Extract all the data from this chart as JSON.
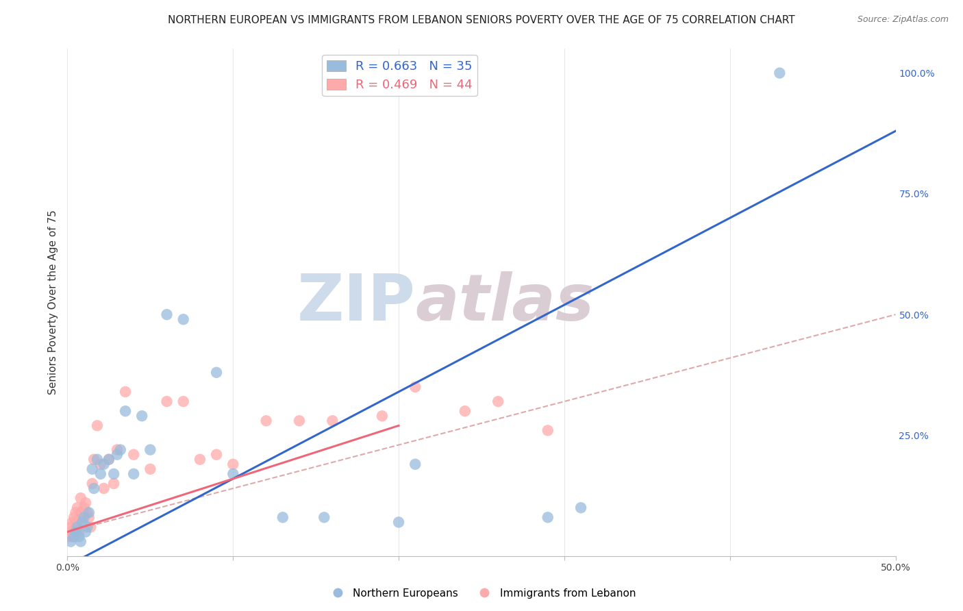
{
  "title": "NORTHERN EUROPEAN VS IMMIGRANTS FROM LEBANON SENIORS POVERTY OVER THE AGE OF 75 CORRELATION CHART",
  "source": "Source: ZipAtlas.com",
  "ylabel": "Seniors Poverty Over the Age of 75",
  "xlim": [
    0.0,
    0.5
  ],
  "ylim": [
    0.0,
    1.05
  ],
  "blue_R": 0.663,
  "blue_N": 35,
  "pink_R": 0.469,
  "pink_N": 44,
  "blue_scatter_x": [
    0.002,
    0.004,
    0.005,
    0.006,
    0.007,
    0.008,
    0.009,
    0.01,
    0.011,
    0.012,
    0.013,
    0.015,
    0.016,
    0.018,
    0.02,
    0.022,
    0.025,
    0.028,
    0.03,
    0.032,
    0.035,
    0.04,
    0.045,
    0.05,
    0.06,
    0.07,
    0.09,
    0.1,
    0.13,
    0.155,
    0.2,
    0.21,
    0.29,
    0.31,
    0.43
  ],
  "blue_scatter_y": [
    0.03,
    0.04,
    0.05,
    0.06,
    0.04,
    0.03,
    0.07,
    0.08,
    0.05,
    0.06,
    0.09,
    0.18,
    0.14,
    0.2,
    0.17,
    0.19,
    0.2,
    0.17,
    0.21,
    0.22,
    0.3,
    0.17,
    0.29,
    0.22,
    0.5,
    0.49,
    0.38,
    0.17,
    0.08,
    0.08,
    0.07,
    0.19,
    0.08,
    0.1,
    1.0
  ],
  "pink_scatter_x": [
    0.001,
    0.002,
    0.002,
    0.003,
    0.003,
    0.004,
    0.004,
    0.005,
    0.005,
    0.006,
    0.006,
    0.007,
    0.008,
    0.008,
    0.009,
    0.01,
    0.011,
    0.012,
    0.013,
    0.014,
    0.015,
    0.016,
    0.018,
    0.02,
    0.022,
    0.025,
    0.028,
    0.03,
    0.035,
    0.04,
    0.05,
    0.06,
    0.07,
    0.08,
    0.09,
    0.1,
    0.12,
    0.14,
    0.16,
    0.19,
    0.21,
    0.24,
    0.26,
    0.29
  ],
  "pink_scatter_y": [
    0.04,
    0.05,
    0.06,
    0.04,
    0.07,
    0.05,
    0.08,
    0.06,
    0.09,
    0.07,
    0.1,
    0.05,
    0.09,
    0.12,
    0.08,
    0.1,
    0.11,
    0.09,
    0.08,
    0.06,
    0.15,
    0.2,
    0.27,
    0.19,
    0.14,
    0.2,
    0.15,
    0.22,
    0.34,
    0.21,
    0.18,
    0.32,
    0.32,
    0.2,
    0.21,
    0.19,
    0.28,
    0.28,
    0.28,
    0.29,
    0.35,
    0.3,
    0.32,
    0.26
  ],
  "blue_line_x": [
    0.0,
    0.5
  ],
  "blue_line_y": [
    -0.02,
    0.88
  ],
  "pink_solid_line_x": [
    0.0,
    0.2
  ],
  "pink_solid_line_y": [
    0.05,
    0.27
  ],
  "pink_dashed_line_x": [
    0.0,
    0.5
  ],
  "pink_dashed_line_y": [
    0.05,
    0.5
  ],
  "blue_color": "#99BBDD",
  "pink_color": "#FFAAAA",
  "blue_line_color": "#3366CC",
  "pink_solid_color": "#EE6677",
  "pink_dashed_color": "#DDAAAA",
  "watermark_zip_color": "#C8D8E8",
  "watermark_atlas_color": "#D8C8D0",
  "grid_color": "#DDDDDD",
  "background_color": "#FFFFFF",
  "title_fontsize": 11,
  "axis_label_fontsize": 11,
  "tick_fontsize": 10,
  "legend_fontsize": 13
}
